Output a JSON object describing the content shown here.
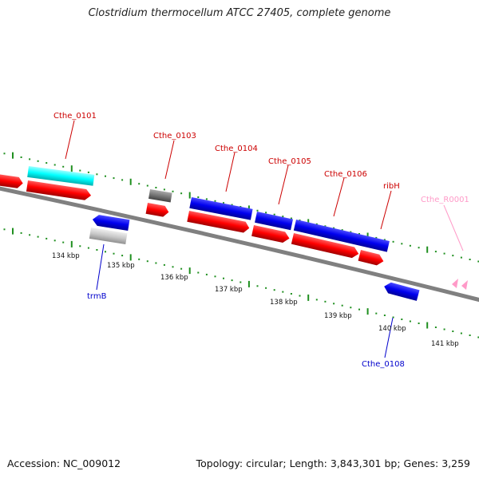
{
  "title": "Clostridium thermocellum ATCC 27405, complete genome",
  "footer": {
    "accession": "Accession: NC_009012",
    "summary": "Topology: circular; Length: 3,843,301 bp; Genes: 3,259"
  },
  "colors": {
    "cds_forward": "#ff0000",
    "cds_reverse": "#0000ff",
    "rna": "#00ffff",
    "other": "#808080",
    "pseudo": "#c0c0c0",
    "trna": "#ffa0c8",
    "backbone": "#808080",
    "tick": "#1f8f1f"
  },
  "labels": {
    "cthe_0101": "Cthe_0101",
    "cthe_0103": "Cthe_0103",
    "cthe_0104": "Cthe_0104",
    "cthe_0105": "Cthe_0105",
    "cthe_0106": "Cthe_0106",
    "ribh": "ribH",
    "cthe_r0001": "Cthe_R0001",
    "trmb": "trmB",
    "cthe_0108": "Cthe_0108"
  },
  "scale": {
    "unit": "kbp",
    "positions": [
      "134 kbp",
      "135 kbp",
      "136 kbp",
      "137 kbp",
      "138 kbp",
      "139 kbp",
      "140 kbp",
      "141 kbp"
    ]
  }
}
